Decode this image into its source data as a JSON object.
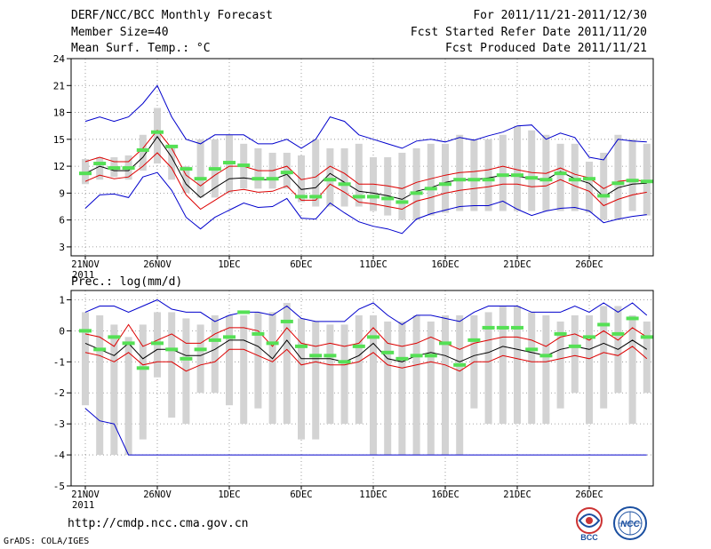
{
  "header": {
    "title": "DERF/NCC/BCC Monthly Forecast",
    "member_size": "Member Size=40",
    "variable": "Mean Surf. Temp.: °C",
    "period": "For 2011/11/21-2011/12/30",
    "fcst_started": "Fcst Started Refer Date 2011/11/20",
    "fcst_produced": "Fcst Produced Date 2011/11/21"
  },
  "footer": {
    "url": "http://cmdp.ncc.cma.gov.cn",
    "credit": "GrADS: COLA/IGES",
    "logo_bcc": "BCC",
    "logo_ncc": "NCC"
  },
  "colors": {
    "box": "#d3d3d3",
    "median": "#55e055",
    "mean": "#000000",
    "sd": "#dd0000",
    "extreme": "#0000cc",
    "grid": "#888888"
  },
  "chart_data": [
    {
      "type": "boxplot-ensemble",
      "title": "Mean Surf. Temp.: °C",
      "x_tick_labels": [
        "21NOV",
        "26NOV",
        "1DEC",
        "6DEC",
        "11DEC",
        "16DEC",
        "21DEC",
        "26DEC"
      ],
      "x_tick_days": [
        0,
        5,
        10,
        15,
        20,
        25,
        30,
        35
      ],
      "year_label": "2011",
      "ylim": [
        2,
        24
      ],
      "y_ticks": [
        3,
        6,
        9,
        12,
        15,
        18,
        21,
        24
      ],
      "days": [
        0,
        1,
        2,
        3,
        4,
        5,
        6,
        7,
        8,
        9,
        10,
        11,
        12,
        13,
        14,
        15,
        16,
        17,
        18,
        19,
        20,
        21,
        22,
        23,
        24,
        25,
        26,
        27,
        28,
        29,
        30,
        31,
        32,
        33,
        34,
        35,
        36,
        37,
        38,
        39
      ],
      "box_low": [
        10.0,
        10.5,
        10.8,
        10.5,
        11.5,
        12.3,
        10.5,
        9.0,
        8.5,
        8.5,
        9.0,
        9.5,
        9.5,
        9.5,
        9.5,
        8.0,
        7.5,
        7.5,
        7.5,
        7.5,
        7.0,
        6.5,
        6.0,
        6.0,
        6.5,
        6.8,
        7.0,
        7.0,
        7.0,
        7.0,
        7.0,
        7.0,
        7.0,
        7.0,
        7.0,
        6.8,
        6.0,
        6.0,
        7.0,
        6.5
      ],
      "box_high": [
        12.8,
        13.0,
        13.0,
        13.2,
        15.5,
        18.5,
        14.0,
        12.0,
        15.0,
        15.0,
        15.5,
        14.5,
        14.0,
        13.5,
        13.5,
        13.2,
        15.0,
        14.0,
        14.0,
        14.5,
        13.0,
        13.0,
        13.5,
        14.0,
        14.5,
        14.5,
        15.5,
        15.0,
        15.0,
        15.5,
        16.5,
        16.0,
        15.5,
        14.5,
        14.5,
        12.5,
        13.5,
        15.5,
        15.0,
        14.5
      ],
      "median": [
        11.2,
        12.3,
        11.8,
        11.8,
        13.8,
        15.8,
        14.2,
        11.7,
        10.6,
        11.7,
        12.4,
        12.1,
        10.6,
        10.6,
        11.3,
        8.6,
        8.6,
        10.5,
        10.0,
        8.6,
        8.6,
        8.4,
        8.0,
        9.0,
        9.5,
        10.0,
        10.5,
        10.5,
        10.5,
        11.0,
        11.0,
        10.7,
        10.5,
        11.2,
        10.5,
        10.6,
        8.7,
        10.1,
        10.4,
        10.3
      ],
      "series": [
        {
          "name": "max",
          "values": [
            17.0,
            17.5,
            17.0,
            17.5,
            19.0,
            21.0,
            17.5,
            15.0,
            14.5,
            15.5,
            15.5,
            15.5,
            14.5,
            14.5,
            15.0,
            14.0,
            15.0,
            17.5,
            17.0,
            15.5,
            15.0,
            14.5,
            14.0,
            14.8,
            15.0,
            14.7,
            15.2,
            14.9,
            15.4,
            15.8,
            16.5,
            16.6,
            15.0,
            15.7,
            15.2,
            13.0,
            12.7,
            15.0,
            14.8,
            14.7
          ]
        },
        {
          "name": "mean+sd",
          "values": [
            12.5,
            13.0,
            12.5,
            12.5,
            14.0,
            16.0,
            14.0,
            11.0,
            9.8,
            11.0,
            12.0,
            12.0,
            11.5,
            11.5,
            12.0,
            10.5,
            10.8,
            12.0,
            11.2,
            10.0,
            10.0,
            9.8,
            9.5,
            10.2,
            10.6,
            11.0,
            11.3,
            11.4,
            11.6,
            12.0,
            11.6,
            11.3,
            11.2,
            11.8,
            11.1,
            10.7,
            9.5,
            10.3,
            10.5,
            10.3
          ]
        },
        {
          "name": "mean",
          "values": [
            11.2,
            12.0,
            11.5,
            11.5,
            13.0,
            15.3,
            13.0,
            10.0,
            8.5,
            9.6,
            10.6,
            10.7,
            10.5,
            10.5,
            11.1,
            9.4,
            9.6,
            11.2,
            10.2,
            9.2,
            9.0,
            8.7,
            8.3,
            9.2,
            9.6,
            10.2,
            10.5,
            10.5,
            10.7,
            11.0,
            10.9,
            10.6,
            10.5,
            11.4,
            10.6,
            10.1,
            8.6,
            9.6,
            10.0,
            10.1
          ]
        },
        {
          "name": "mean-sd",
          "values": [
            10.3,
            11.0,
            10.6,
            10.8,
            12.0,
            13.5,
            11.8,
            8.8,
            7.2,
            8.2,
            9.2,
            9.4,
            9.1,
            9.2,
            9.8,
            8.2,
            8.2,
            10.0,
            9.1,
            8.0,
            7.8,
            7.5,
            7.2,
            8.1,
            8.5,
            9.0,
            9.3,
            9.5,
            9.7,
            10.0,
            10.0,
            9.7,
            9.8,
            10.5,
            9.8,
            9.2,
            7.6,
            8.3,
            8.8,
            9.1
          ]
        },
        {
          "name": "min",
          "values": [
            7.3,
            8.8,
            8.9,
            8.5,
            10.8,
            11.3,
            9.3,
            6.3,
            5.0,
            6.3,
            7.1,
            7.9,
            7.4,
            7.5,
            8.4,
            6.2,
            6.1,
            7.9,
            6.8,
            5.8,
            5.3,
            5.0,
            4.5,
            6.1,
            6.7,
            7.1,
            7.5,
            7.6,
            7.6,
            8.1,
            7.2,
            6.5,
            7.0,
            7.3,
            7.4,
            7.0,
            5.7,
            6.1,
            6.4,
            6.6
          ]
        }
      ]
    },
    {
      "type": "boxplot-ensemble",
      "title": "Prec.: log(mm/d)",
      "x_tick_labels": [
        "21NOV",
        "26NOV",
        "1DEC",
        "6DEC",
        "11DEC",
        "16DEC",
        "21DEC",
        "26DEC"
      ],
      "x_tick_days": [
        0,
        5,
        10,
        15,
        20,
        25,
        30,
        35
      ],
      "year_label": "2011",
      "ylim": [
        -5,
        1.3
      ],
      "y_ticks": [
        -5,
        -4,
        -3,
        -2,
        -1,
        0,
        1
      ],
      "days": [
        0,
        1,
        2,
        3,
        4,
        5,
        6,
        7,
        8,
        9,
        10,
        11,
        12,
        13,
        14,
        15,
        16,
        17,
        18,
        19,
        20,
        21,
        22,
        23,
        24,
        25,
        26,
        27,
        28,
        29,
        30,
        31,
        32,
        33,
        34,
        35,
        36,
        37,
        38,
        39
      ],
      "box_low": [
        -2.4,
        -4.0,
        -4.0,
        -4.0,
        -3.5,
        -1.5,
        -2.8,
        -3.0,
        -2.0,
        -2.0,
        -2.4,
        -3.0,
        -2.5,
        -3.0,
        -3.0,
        -3.5,
        -3.5,
        -3.0,
        -3.0,
        -3.0,
        -4.0,
        -4.0,
        -4.0,
        -4.0,
        -4.0,
        -4.0,
        -4.0,
        -2.5,
        -3.0,
        -3.0,
        -3.0,
        -3.0,
        -3.0,
        -2.5,
        -2.0,
        -3.0,
        -2.5,
        -2.0,
        -3.0,
        -2.0
      ],
      "box_high": [
        0.6,
        0.5,
        0.2,
        -0.2,
        0.2,
        0.6,
        0.6,
        0.4,
        0.2,
        0.5,
        0.5,
        0.5,
        0.6,
        0.6,
        0.9,
        0.4,
        0.3,
        0.2,
        0.2,
        0.5,
        0.5,
        0.3,
        0.3,
        0.5,
        0.3,
        0.5,
        0.5,
        0.5,
        0.6,
        0.8,
        0.8,
        0.6,
        0.5,
        0.3,
        0.5,
        0.5,
        0.8,
        0.8,
        0.5,
        0.3
      ],
      "median": [
        0.0,
        -0.6,
        -0.2,
        -0.4,
        -1.2,
        -0.4,
        -0.6,
        -0.9,
        -0.6,
        -0.3,
        -0.2,
        0.6,
        -0.1,
        -0.4,
        0.3,
        -0.5,
        -0.8,
        -0.8,
        -1.0,
        -0.5,
        -0.2,
        -0.7,
        -0.9,
        -0.8,
        -0.8,
        -0.4,
        -1.1,
        -0.3,
        0.1,
        0.1,
        0.1,
        -0.6,
        -0.8,
        -0.1,
        -0.5,
        -0.2,
        0.2,
        -0.1,
        0.4,
        -0.2
      ],
      "series": [
        {
          "name": "max",
          "values": [
            0.6,
            0.8,
            0.8,
            0.6,
            0.8,
            1.0,
            0.7,
            0.6,
            0.6,
            0.3,
            0.5,
            0.6,
            0.6,
            0.5,
            0.8,
            0.4,
            0.3,
            0.3,
            0.3,
            0.7,
            0.9,
            0.5,
            0.2,
            0.5,
            0.5,
            0.4,
            0.3,
            0.6,
            0.8,
            0.8,
            0.8,
            0.6,
            0.6,
            0.6,
            0.8,
            0.6,
            0.9,
            0.6,
            0.9,
            0.5
          ]
        },
        {
          "name": "mean+sd",
          "values": [
            -0.1,
            -0.2,
            -0.5,
            0.2,
            -0.5,
            -0.3,
            -0.1,
            -0.4,
            -0.4,
            -0.1,
            0.1,
            0.1,
            0.0,
            -0.5,
            0.1,
            -0.4,
            -0.5,
            -0.4,
            -0.5,
            -0.4,
            0.1,
            -0.4,
            -0.5,
            -0.4,
            -0.2,
            -0.4,
            -0.6,
            -0.4,
            -0.3,
            -0.2,
            -0.2,
            -0.3,
            -0.5,
            -0.2,
            -0.1,
            -0.3,
            0.0,
            -0.3,
            0.1,
            -0.2
          ]
        },
        {
          "name": "mean",
          "values": [
            -0.4,
            -0.6,
            -0.8,
            -0.4,
            -0.9,
            -0.6,
            -0.6,
            -0.8,
            -0.8,
            -0.6,
            -0.3,
            -0.3,
            -0.5,
            -0.9,
            -0.3,
            -0.9,
            -0.9,
            -0.9,
            -1.0,
            -0.8,
            -0.4,
            -0.9,
            -1.0,
            -0.8,
            -0.7,
            -0.8,
            -1.0,
            -0.8,
            -0.7,
            -0.5,
            -0.6,
            -0.7,
            -0.8,
            -0.6,
            -0.5,
            -0.6,
            -0.4,
            -0.6,
            -0.3,
            -0.6
          ]
        },
        {
          "name": "mean-sd",
          "values": [
            -0.7,
            -0.8,
            -1.0,
            -0.7,
            -1.1,
            -1.0,
            -1.0,
            -1.3,
            -1.1,
            -1.0,
            -0.6,
            -0.6,
            -0.8,
            -1.0,
            -0.6,
            -1.1,
            -1.0,
            -1.1,
            -1.1,
            -1.0,
            -0.7,
            -1.1,
            -1.2,
            -1.1,
            -1.0,
            -1.1,
            -1.3,
            -1.0,
            -1.0,
            -0.8,
            -0.9,
            -1.0,
            -1.0,
            -0.9,
            -0.8,
            -0.9,
            -0.7,
            -0.8,
            -0.5,
            -0.9
          ]
        },
        {
          "name": "min",
          "values": [
            -2.5,
            -2.9,
            -3.0,
            -4.0,
            -4.0,
            -4.0,
            -4.0,
            -4.0,
            -4.0,
            -4.0,
            -4.0,
            -4.0,
            -4.0,
            -4.0,
            -4.0,
            -4.0,
            -4.0,
            -4.0,
            -4.0,
            -4.0,
            -4.0,
            -4.0,
            -4.0,
            -4.0,
            -4.0,
            -4.0,
            -4.0,
            -4.0,
            -4.0,
            -4.0,
            -4.0,
            -4.0,
            -4.0,
            -4.0,
            -4.0,
            -4.0,
            -4.0,
            -4.0,
            -4.0,
            -4.0
          ]
        }
      ]
    }
  ]
}
